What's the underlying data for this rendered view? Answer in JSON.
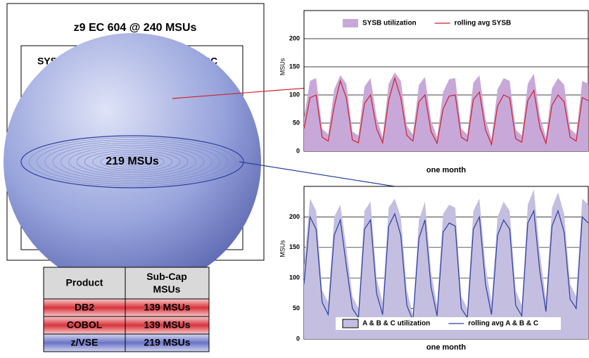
{
  "diagram": {
    "title": "z9 EC  604 @ 240 MSUs",
    "partitions": [
      "SYSA",
      "SYSC"
    ],
    "sphere_label": "219 MSUs"
  },
  "table": {
    "header": [
      "Product",
      "Sub-Cap MSUs"
    ],
    "rows": [
      [
        "DB2",
        "139 MSUs"
      ],
      [
        "COBOL",
        "139 MSUs"
      ],
      [
        "z/VSE",
        "219 MSUs"
      ]
    ]
  },
  "chart_data": [
    {
      "type": "combo",
      "ylabel": "MSUs",
      "xlabel": "one month",
      "ylim": [
        0,
        250
      ],
      "yticks": [
        0,
        50,
        100,
        150,
        200
      ],
      "grid": true,
      "legend": "top",
      "series": [
        {
          "name": "SYSB utilization",
          "kind": "area",
          "color": "#c8a8d8",
          "values": [
            60,
            125,
            130,
            40,
            30,
            110,
            135,
            120,
            35,
            28,
            115,
            130,
            60,
            25,
            120,
            140,
            125,
            45,
            30,
            118,
            132,
            55,
            25,
            105,
            128,
            130,
            40,
            30,
            122,
            135,
            58,
            22,
            110,
            130,
            125,
            38,
            28,
            120,
            138,
            62,
            25,
            112,
            130,
            118,
            40,
            30,
            125,
            120
          ]
        },
        {
          "name": "rolling avg SYSB",
          "kind": "line",
          "color": "#d0202a",
          "values": [
            40,
            95,
            100,
            25,
            18,
            80,
            125,
            95,
            20,
            15,
            85,
            100,
            40,
            15,
            90,
            130,
            95,
            28,
            18,
            88,
            100,
            35,
            14,
            75,
            98,
            100,
            25,
            18,
            92,
            105,
            38,
            12,
            80,
            100,
            95,
            22,
            16,
            90,
            108,
            42,
            14,
            82,
            100,
            88,
            25,
            18,
            95,
            90
          ]
        }
      ]
    },
    {
      "type": "combo",
      "ylabel": "MSUs",
      "xlabel": "one month",
      "ylim": [
        0,
        250
      ],
      "yticks": [
        0,
        50,
        100,
        150,
        200
      ],
      "grid": true,
      "legend": "bottom",
      "series": [
        {
          "name": "A & B & C utilization",
          "kind": "area",
          "color": "#c4bee0",
          "values": [
            120,
            230,
            210,
            80,
            60,
            200,
            220,
            150,
            70,
            50,
            210,
            225,
            100,
            60,
            215,
            230,
            200,
            80,
            40,
            195,
            225,
            110,
            55,
            205,
            220,
            215,
            70,
            50,
            210,
            230,
            120,
            60,
            200,
            225,
            210,
            80,
            55,
            220,
            245,
            140,
            65,
            215,
            240,
            205,
            90,
            70,
            230,
            220
          ]
        },
        {
          "name": "rolling avg A & B & C",
          "kind": "line",
          "color": "#2a3f9e",
          "values": [
            90,
            200,
            180,
            60,
            40,
            170,
            195,
            120,
            50,
            35,
            180,
            195,
            75,
            40,
            185,
            205,
            170,
            55,
            30,
            165,
            195,
            85,
            38,
            175,
            190,
            185,
            50,
            35,
            180,
            200,
            90,
            40,
            170,
            195,
            180,
            55,
            38,
            190,
            210,
            110,
            45,
            185,
            210,
            175,
            65,
            50,
            200,
            190
          ]
        }
      ]
    }
  ]
}
